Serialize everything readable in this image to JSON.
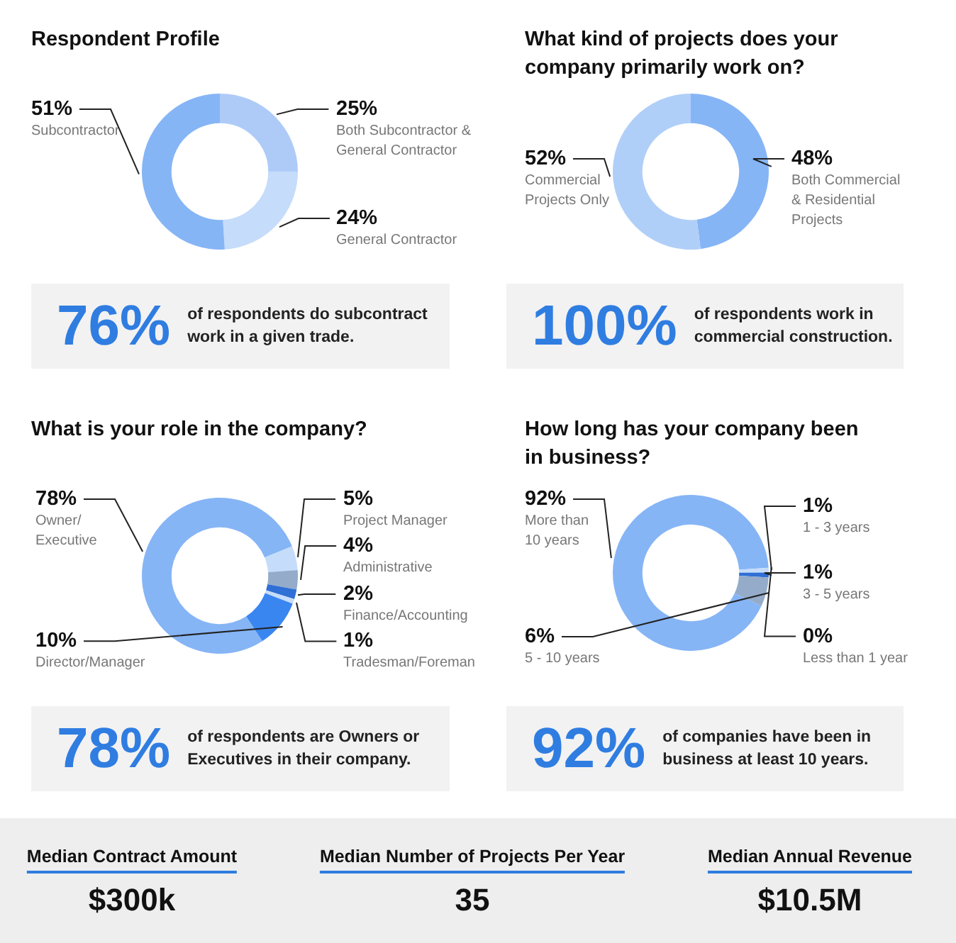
{
  "chart_data": [
    {
      "type": "donut",
      "title": "Respondent Profile",
      "categories": [
        "Both Subcontractor & General Contractor",
        "General Contractor",
        "Subcontractor"
      ],
      "values": [
        25,
        24,
        51
      ],
      "value_labels": [
        "25%",
        "24%",
        "51%"
      ],
      "colors": [
        "#aecbf8",
        "#c5dcfa",
        "#86b5f6"
      ],
      "annotations": [
        "76%",
        "of respondents do subcontract work in a given trade."
      ]
    },
    {
      "type": "donut",
      "title": "What kind of projects does your company primarily work on?",
      "categories": [
        "Both Commercial & Residential Projects",
        "Commercial Projects Only"
      ],
      "values": [
        48,
        52
      ],
      "value_labels": [
        "48%",
        "52%"
      ],
      "colors": [
        "#86b5f6",
        "#b0cff8"
      ],
      "annotations": [
        "100%",
        "of respondents work in commercial construction."
      ]
    },
    {
      "type": "donut",
      "title": "What is your role in the company?",
      "categories": [
        "Owner/\nExecutive",
        "Project Manager",
        "Administrative",
        "Finance/Accounting",
        "Tradesman/Foreman",
        "Director/Manager"
      ],
      "values": [
        78,
        5,
        4,
        2,
        1,
        10
      ],
      "value_labels": [
        "78%",
        "5%",
        "4%",
        "2%",
        "1%",
        "10%"
      ],
      "colors": [
        "#86b5f6",
        "#c5dcfa",
        "#94abca",
        "#2f6fd6",
        "#c5dcfa",
        "#3a86f0"
      ],
      "annotations": [
        "78%",
        "of respondents are Owners or Executives in their company."
      ]
    },
    {
      "type": "donut",
      "title": "How long has your company been in business?",
      "categories": [
        "More than 10 years",
        "Less than 1 year",
        "1 - 3 years",
        "3 - 5 years",
        "5 - 10 years"
      ],
      "values": [
        92,
        0,
        1,
        1,
        6
      ],
      "value_labels": [
        "92%",
        "0%",
        "1%",
        "1%",
        "6%"
      ],
      "colors": [
        "#86b5f6",
        "#2f6fd6",
        "#c5dcfa",
        "#2f6fd6",
        "#94abca"
      ],
      "annotations": [
        "92%",
        "of companies have been in business at least 10 years."
      ]
    },
    {
      "type": "other",
      "annotations": [
        "Median Contract Amount",
        "$300k",
        "Median Number of Projects Per Year",
        "35",
        "Median Annual Revenue",
        "$10.5M"
      ]
    }
  ]
}
